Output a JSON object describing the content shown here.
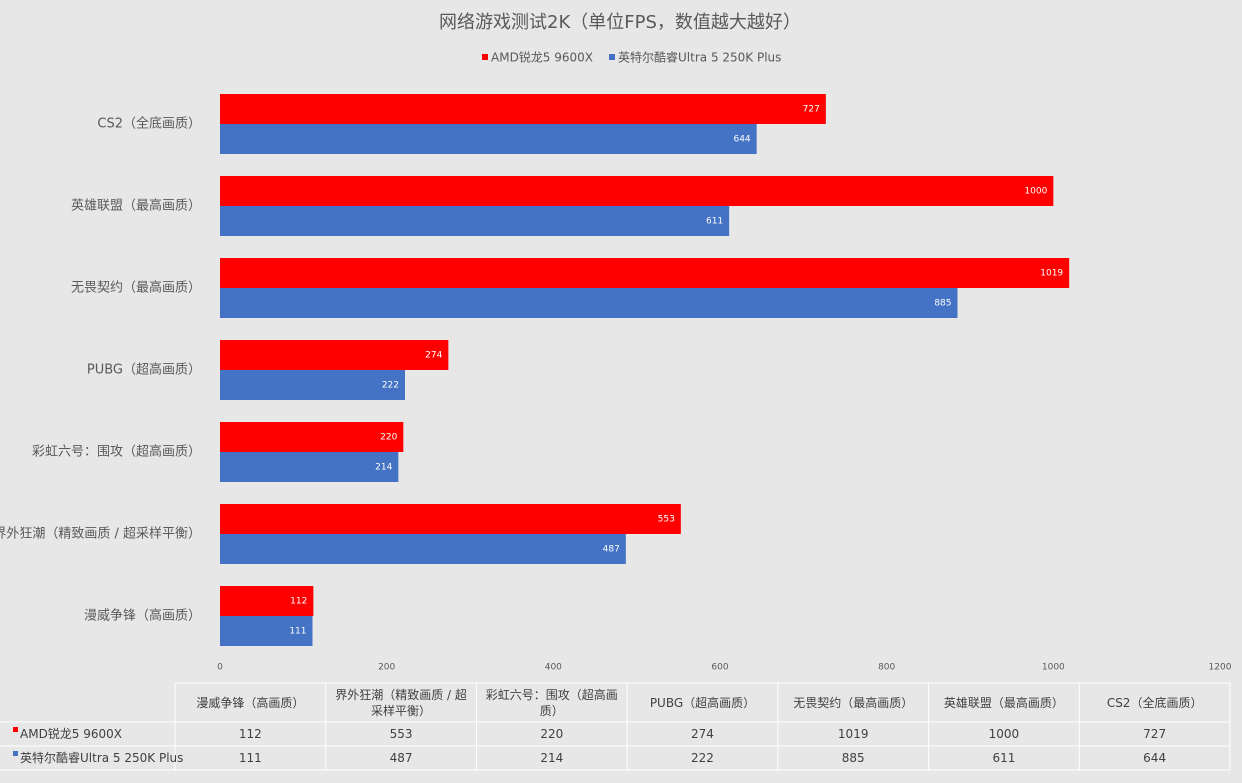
{
  "chart_data": {
    "type": "bar",
    "orientation": "horizontal",
    "title": "网络游戏测试2K（单位FPS，数值越大越好）",
    "categories": [
      "漫威争锋（高画质）",
      "界外狂潮（精致画质 / 超采样平衡）",
      "彩虹六号：围攻（超高画质）",
      "PUBG（超高画质）",
      "无畏契约（最高画质）",
      "英雄联盟（最高画质）",
      "CS2（全底画质）"
    ],
    "series": [
      {
        "name": "AMD锐龙5 9600X",
        "color": "#ff0000",
        "values": [
          112,
          553,
          220,
          274,
          1019,
          1000,
          727
        ]
      },
      {
        "name": "英特尔酷睿Ultra 5 250K Plus",
        "color": "#4472c4",
        "values": [
          111,
          487,
          214,
          222,
          885,
          611,
          644
        ]
      }
    ],
    "xlim": [
      0,
      1200
    ],
    "xticks": [
      0,
      200,
      400,
      600,
      800,
      1000,
      1200
    ],
    "grid": false,
    "legend": "top",
    "data_table": true
  }
}
